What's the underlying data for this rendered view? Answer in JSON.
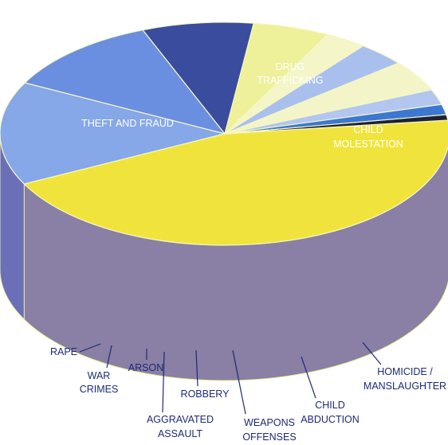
{
  "chart_data": {
    "type": "pie",
    "title": "",
    "slices": [
      {
        "label": "THEFT AND FRAUD",
        "value": 44.5,
        "color": "#f0e43c",
        "side": "#8a7fa4"
      },
      {
        "label": "DRUG TRAFFICKING",
        "value": 15.0,
        "color": "#86a7e8",
        "side": "#6a6fb8"
      },
      {
        "label": "CHILD MOLESTATION",
        "value": 11.5,
        "color": "#6b8fe0",
        "side": "#4e5cb0"
      },
      {
        "label": "HOMICIDE / MANSLAUGHTER",
        "value": 8.0,
        "color": "#3a4c9e",
        "side": "#2e3b88"
      },
      {
        "label": "CHILD ABDUCTION",
        "value": 5.5,
        "color": "#eef09a",
        "side": "#7d75ae"
      },
      {
        "label": "WEAPONS OFFENSES",
        "value": 3.0,
        "color": "#f4f6c8",
        "side": "#5f6ec2"
      },
      {
        "label": "ROBBERY",
        "value": 3.5,
        "color": "#a9c0ee",
        "side": "#827cb2"
      },
      {
        "label": "AGGRAVATED ASSAULT",
        "value": 4.5,
        "color": "#f3f5c9",
        "side": "#6c72bb"
      },
      {
        "label": "ARSON",
        "value": 2.2,
        "color": "#b2c6f0",
        "side": "#3e55b8"
      },
      {
        "label": "WAR CRIMES",
        "value": 1.5,
        "color": "#3c78d2",
        "side": "#2f6bc6"
      },
      {
        "label": "RAPE",
        "value": 0.8,
        "color": "#1e2238",
        "side": "#141825"
      }
    ]
  },
  "labels": {
    "theft": [
      "THEFT AND FRAUD"
    ],
    "drug": [
      "DRUG",
      "TRAFFICKING"
    ],
    "molest": [
      "CHILD",
      "MOLESTATION"
    ],
    "homicide": [
      "HOMICIDE /",
      "MANSLAUGHTER"
    ],
    "abduction": [
      "CHILD",
      "ABDUCTION"
    ],
    "weapons": [
      "WEAPONS",
      "OFFENSES"
    ],
    "robbery": [
      "ROBBERY"
    ],
    "assault": [
      "AGGRAVATED",
      "ASSAULT"
    ],
    "arson": [
      "ARSON"
    ],
    "war": [
      "WAR",
      "CRIMES"
    ],
    "rape": [
      "RAPE"
    ]
  }
}
